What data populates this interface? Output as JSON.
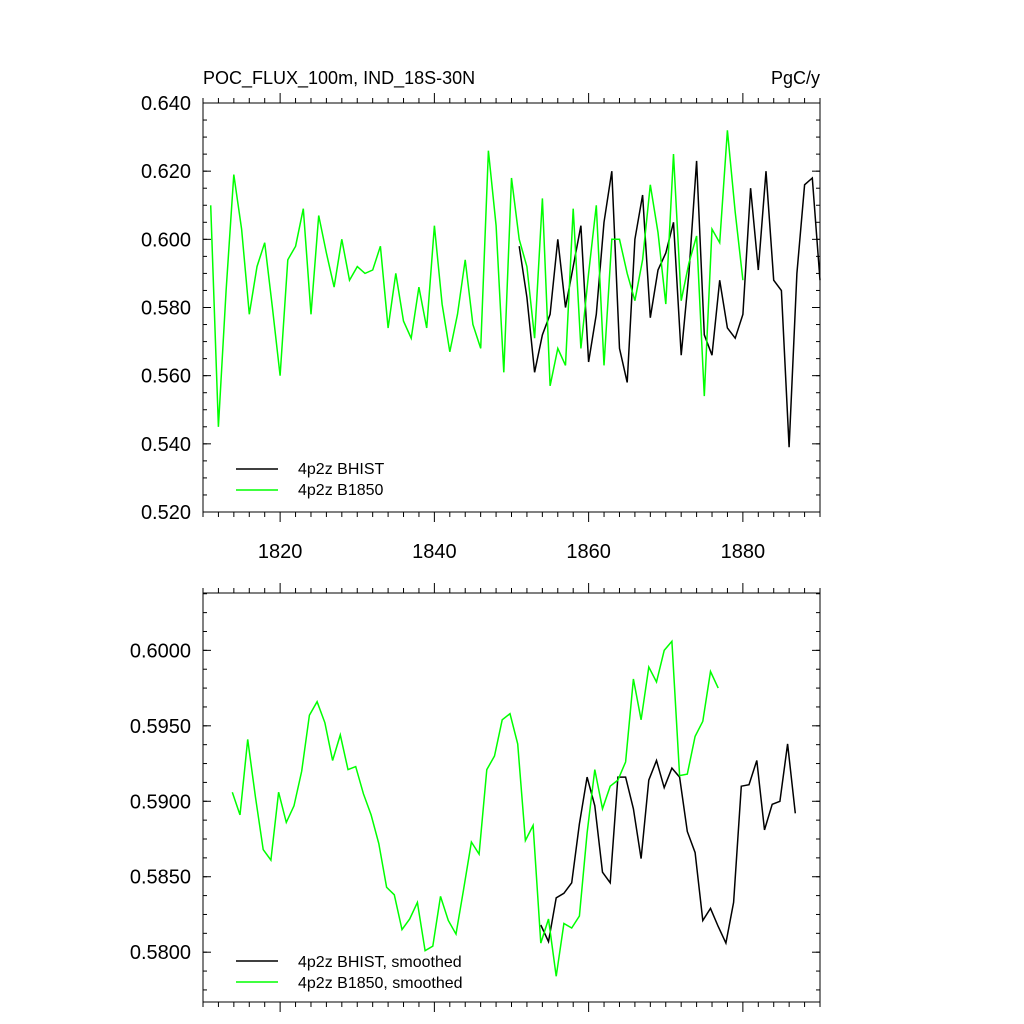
{
  "chart_data": [
    {
      "type": "line",
      "title": "POC_FLUX_100m, IND_18S-30N",
      "units": "PgC/y",
      "xlim": [
        1810,
        1890
      ],
      "ylim": [
        0.52,
        0.64
      ],
      "x_ticks": [
        1820,
        1840,
        1860,
        1880
      ],
      "y_ticks": [
        "0.520",
        "0.540",
        "0.560",
        "0.580",
        "0.600",
        "0.620",
        "0.640"
      ],
      "legend_position": "bottom-left",
      "series": [
        {
          "name": "4p2z BHIST",
          "color": "#000000",
          "x": [
            1851,
            1852,
            1853,
            1854,
            1855,
            1856,
            1857,
            1858,
            1859,
            1860,
            1861,
            1862,
            1863,
            1864,
            1865,
            1866,
            1867,
            1868,
            1869,
            1870,
            1871,
            1872,
            1873,
            1874,
            1875,
            1876,
            1877,
            1878,
            1879,
            1880,
            1881,
            1882,
            1883,
            1884,
            1885,
            1886,
            1887,
            1888,
            1889,
            1890
          ],
          "y": [
            0.598,
            0.583,
            0.561,
            0.572,
            0.578,
            0.6,
            0.58,
            0.592,
            0.604,
            0.564,
            0.578,
            0.605,
            0.62,
            0.568,
            0.558,
            0.6,
            0.613,
            0.577,
            0.591,
            0.596,
            0.605,
            0.566,
            0.59,
            0.623,
            0.572,
            0.566,
            0.588,
            0.574,
            0.571,
            0.578,
            0.615,
            0.591,
            0.62,
            0.588,
            0.585,
            0.539,
            0.59,
            0.616,
            0.618,
            0.588
          ]
        },
        {
          "name": "4p2z B1850",
          "color": "#00ff00",
          "x": [
            1811,
            1812,
            1813,
            1814,
            1815,
            1816,
            1817,
            1818,
            1819,
            1820,
            1821,
            1822,
            1823,
            1824,
            1825,
            1826,
            1827,
            1828,
            1829,
            1830,
            1831,
            1832,
            1833,
            1834,
            1835,
            1836,
            1837,
            1838,
            1839,
            1840,
            1841,
            1842,
            1843,
            1844,
            1845,
            1846,
            1847,
            1848,
            1849,
            1850,
            1851,
            1852,
            1853,
            1854,
            1855,
            1856,
            1857,
            1858,
            1859,
            1860,
            1861,
            1862,
            1863,
            1864,
            1865,
            1866,
            1867,
            1868,
            1869,
            1870,
            1871,
            1872,
            1873,
            1874,
            1875,
            1876,
            1877,
            1878,
            1879,
            1880
          ],
          "y": [
            0.61,
            0.545,
            0.585,
            0.619,
            0.603,
            0.578,
            0.592,
            0.599,
            0.58,
            0.56,
            0.594,
            0.598,
            0.609,
            0.578,
            0.607,
            0.596,
            0.586,
            0.6,
            0.588,
            0.592,
            0.59,
            0.591,
            0.598,
            0.574,
            0.59,
            0.576,
            0.571,
            0.586,
            0.574,
            0.604,
            0.581,
            0.567,
            0.578,
            0.594,
            0.575,
            0.568,
            0.626,
            0.604,
            0.561,
            0.618,
            0.6,
            0.592,
            0.571,
            0.612,
            0.557,
            0.568,
            0.563,
            0.609,
            0.568,
            0.59,
            0.61,
            0.563,
            0.6,
            0.6,
            0.59,
            0.582,
            0.594,
            0.616,
            0.602,
            0.581,
            0.625,
            0.582,
            0.593,
            0.601,
            0.554,
            0.603,
            0.599,
            0.632,
            0.608,
            0.588
          ]
        }
      ]
    },
    {
      "type": "line",
      "xlim": [
        1810,
        1890
      ],
      "ylim": [
        0.5767,
        0.6038
      ],
      "x_ticks": [
        1820,
        1840,
        1860,
        1880
      ],
      "y_ticks": [
        "0.5800",
        "0.5850",
        "0.5900",
        "0.5950",
        "0.6000"
      ],
      "legend_position": "bottom-left",
      "series": [
        {
          "name": "4p2z BHIST, smoothed",
          "color": "#000000",
          "x": [
            1853.8,
            1854.8,
            1855.8,
            1856.8,
            1857.8,
            1858.8,
            1859.8,
            1860.8,
            1861.8,
            1862.8,
            1863.8,
            1864.8,
            1865.8,
            1866.8,
            1867.8,
            1868.8,
            1869.8,
            1870.8,
            1871.8,
            1872.8,
            1873.8,
            1874.8,
            1875.8,
            1876.8,
            1877.8,
            1878.8,
            1879.8,
            1880.8,
            1881.8,
            1882.8,
            1883.8,
            1884.8,
            1885.8,
            1886.8
          ],
          "y": [
            0.5818,
            0.5807,
            0.5836,
            0.5839,
            0.5846,
            0.5885,
            0.5916,
            0.5897,
            0.5853,
            0.5846,
            0.5916,
            0.5916,
            0.5895,
            0.5862,
            0.5914,
            0.5927,
            0.5909,
            0.5922,
            0.5916,
            0.588,
            0.5866,
            0.5821,
            0.5829,
            0.5817,
            0.5806,
            0.5833,
            0.591,
            0.5911,
            0.5927,
            0.5881,
            0.5898,
            0.59,
            0.5938,
            0.5892
          ]
        },
        {
          "name": "4p2z B1850, smoothed",
          "color": "#00ff00",
          "x": [
            1813.8,
            1814.8,
            1815.8,
            1816.8,
            1817.8,
            1818.8,
            1819.8,
            1820.8,
            1821.8,
            1822.8,
            1823.8,
            1824.8,
            1825.8,
            1826.8,
            1827.8,
            1828.8,
            1829.8,
            1830.8,
            1831.8,
            1832.8,
            1833.8,
            1834.8,
            1835.8,
            1836.8,
            1837.8,
            1838.8,
            1839.8,
            1840.8,
            1841.8,
            1842.8,
            1843.8,
            1844.8,
            1845.8,
            1846.8,
            1847.8,
            1848.8,
            1849.8,
            1850.8,
            1851.8,
            1852.8,
            1853.8,
            1854.8,
            1855.8,
            1856.8,
            1857.8,
            1858.8,
            1859.8,
            1860.8,
            1861.8,
            1862.8,
            1863.8,
            1864.8,
            1865.8,
            1866.8,
            1867.8,
            1868.8,
            1869.8,
            1870.8,
            1871.8,
            1872.8,
            1873.8,
            1874.8,
            1875.8,
            1876.8
          ],
          "y": [
            0.5906,
            0.5891,
            0.5941,
            0.5903,
            0.5868,
            0.5861,
            0.5906,
            0.5886,
            0.5897,
            0.592,
            0.5957,
            0.5966,
            0.5952,
            0.5927,
            0.5944,
            0.5921,
            0.5923,
            0.5905,
            0.5891,
            0.5872,
            0.5843,
            0.5838,
            0.5815,
            0.5822,
            0.5833,
            0.5801,
            0.5804,
            0.5837,
            0.5821,
            0.5812,
            0.5842,
            0.5873,
            0.5865,
            0.5921,
            0.593,
            0.5954,
            0.5958,
            0.5938,
            0.5874,
            0.5884,
            0.5806,
            0.5822,
            0.5784,
            0.5819,
            0.5816,
            0.5824,
            0.5879,
            0.5921,
            0.5895,
            0.591,
            0.5914,
            0.5926,
            0.5981,
            0.5954,
            0.5989,
            0.5979,
            0.6,
            0.6006,
            0.5917,
            0.5918,
            0.5943,
            0.5953,
            0.5986,
            0.5975
          ]
        }
      ]
    }
  ]
}
